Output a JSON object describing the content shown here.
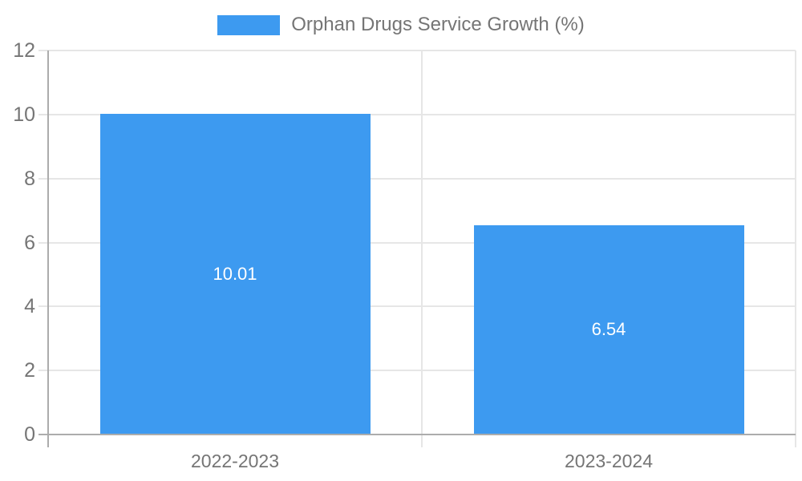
{
  "chart_data": {
    "type": "bar",
    "title": "Orphan Drugs Service Growth (%)",
    "categories": [
      "2022-2023",
      "2023-2024"
    ],
    "values": [
      10.01,
      6.54
    ],
    "value_labels": [
      "10.01",
      "6.54"
    ],
    "ylim": [
      0,
      12
    ],
    "ytick_step": 2,
    "ytick_labels": [
      "0",
      "2",
      "4",
      "6",
      "8",
      "10",
      "12"
    ],
    "xlabel": "",
    "ylabel": "",
    "grid": true,
    "legend_position": "top-center",
    "series": [
      {
        "name": "Orphan Drugs Service Growth (%)",
        "values": [
          10.01,
          6.54
        ]
      }
    ]
  },
  "colors": {
    "bar": "#3D9AF0",
    "grid": "#E6E6E6",
    "axis": "#ACACAC",
    "text": "#757575",
    "bar_label": "#FFFFFF",
    "background": "#FFFFFF"
  }
}
